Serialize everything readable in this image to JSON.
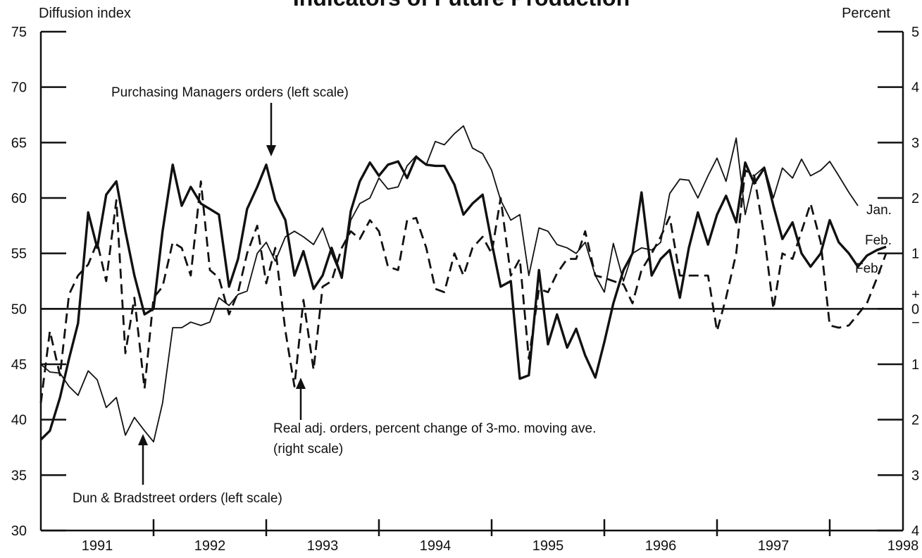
{
  "chart_data": {
    "type": "line",
    "title": "Indicators of Future Production",
    "ylabel": "Diffusion index",
    "y2label": "Percent",
    "x": [
      1991,
      1991.08,
      1991.17,
      1991.25,
      1991.33,
      1991.42,
      1991.5,
      1991.58,
      1991.67,
      1991.75,
      1991.83,
      1991.92,
      1992,
      1992.08,
      1992.17,
      1992.25,
      1992.33,
      1992.42,
      1992.5,
      1992.58,
      1992.67,
      1992.75,
      1992.83,
      1992.92,
      1993,
      1993.08,
      1993.17,
      1993.25,
      1993.33,
      1993.42,
      1993.5,
      1993.58,
      1993.67,
      1993.75,
      1993.83,
      1993.92,
      1994,
      1994.08,
      1994.17,
      1994.25,
      1994.33,
      1994.42,
      1994.5,
      1994.58,
      1994.67,
      1994.75,
      1994.83,
      1994.92,
      1995,
      1995.08,
      1995.17,
      1995.25,
      1995.33,
      1995.42,
      1995.5,
      1995.58,
      1995.67,
      1995.75,
      1995.83,
      1995.92,
      1996,
      1996.08,
      1996.17,
      1996.25,
      1996.33,
      1996.42,
      1996.5,
      1996.58,
      1996.67,
      1996.75,
      1996.83,
      1996.92,
      1997,
      1997.08,
      1997.17,
      1997.25,
      1997.33,
      1997.42,
      1997.5,
      1997.58,
      1997.67,
      1997.75,
      1997.83,
      1997.92,
      1998,
      1998.08,
      1998.17,
      1998.25,
      1998.33,
      1998.42,
      1998.5
    ],
    "series": [
      {
        "name": "Dun & Bradstreet orders (left scale)",
        "end_label": "Jan.",
        "color": "#111111",
        "style": "thin",
        "axis": "y",
        "values": [
          45,
          44.3,
          44.2,
          43,
          42.2,
          44.4,
          43.6,
          41.1,
          42,
          38.6,
          40.2,
          39,
          38,
          41.5,
          48.3,
          48.3,
          48.8,
          48.5,
          48.8,
          51,
          50.3,
          51.3,
          51.6,
          55,
          56,
          54.3,
          56.5,
          57,
          56.5,
          55.8,
          57.3,
          55,
          52.8,
          58,
          59.5,
          60,
          61.8,
          60.8,
          61,
          62.9,
          63.8,
          63,
          65.1,
          64.8,
          65.8,
          66.5,
          64.5,
          64,
          62.5,
          59.8,
          58,
          58.5,
          53,
          57.3,
          57,
          55.8,
          55.5,
          55,
          56,
          53,
          51.5,
          55.9,
          52.5,
          55,
          55.5,
          55.3,
          56,
          60.4,
          61.7,
          61.6,
          60,
          62,
          63.6,
          61.5,
          65.4,
          58.5,
          62,
          62.8,
          60,
          62.7,
          61.8,
          63.5,
          62,
          62.5,
          63.3,
          62,
          60.5,
          59.3,
          null,
          null,
          null
        ]
      },
      {
        "name": "Purchasing Managers orders (left scale)",
        "end_label": "Feb.",
        "color": "#111111",
        "style": "thick",
        "axis": "y",
        "values": [
          38.2,
          39,
          42,
          45.5,
          48.7,
          58.7,
          55.5,
          60.3,
          61.5,
          57,
          53,
          49.5,
          50,
          57,
          63,
          59.3,
          61,
          59.5,
          59,
          58.5,
          52,
          54.5,
          59,
          61,
          63,
          59.8,
          58,
          53,
          55.2,
          51.8,
          53,
          55.5,
          52.8,
          58.8,
          61.5,
          63.2,
          62,
          63,
          63.3,
          61.8,
          63.7,
          63,
          62.9,
          62.9,
          61.2,
          58.5,
          59.5,
          60.3,
          56,
          52,
          52.5,
          43.7,
          44,
          53.5,
          46.8,
          49.5,
          46.5,
          48.2,
          45.8,
          43.8,
          47,
          50.5,
          53.5,
          55,
          60.5,
          53,
          54.5,
          55.3,
          51,
          55.5,
          58.7,
          55.8,
          58.5,
          60.2,
          57.8,
          63.2,
          61.3,
          62.7,
          59.3,
          56.3,
          57.8,
          55,
          53.8,
          55,
          58,
          56,
          55,
          53.8,
          54.8,
          55.3,
          55.6
        ]
      },
      {
        "name": "Real adj. orders, percent change of 3-mo. moving ave.",
        "name_note": "(right scale)",
        "end_label": "Feb.",
        "color": "#111111",
        "style": "dashed",
        "axis": "y2",
        "values": [
          -1.7,
          -0.4,
          -1.2,
          0.26,
          0.6,
          0.8,
          1.2,
          0.5,
          1.96,
          -0.8,
          0.2,
          -1.44,
          0.2,
          0.4,
          1.2,
          1.1,
          0.6,
          2.3,
          0.7,
          0.56,
          -0.1,
          0.3,
          1.0,
          1.5,
          0.46,
          1.1,
          -0.4,
          -1.4,
          0.16,
          -1.1,
          0.4,
          0.5,
          1.1,
          1.4,
          1.26,
          1.6,
          1.4,
          0.76,
          0.7,
          1.6,
          1.64,
          1.1,
          0.36,
          0.3,
          1.0,
          0.6,
          1.1,
          1.3,
          1.0,
          2.0,
          0.6,
          0.9,
          -0.9,
          0.36,
          0.3,
          0.64,
          0.9,
          0.9,
          1.4,
          0.6,
          0.56,
          0.5,
          0.44,
          0.1,
          0.7,
          1.0,
          1.3,
          1.66,
          0.6,
          0.6,
          0.6,
          0.6,
          -0.4,
          0.2,
          1.0,
          2.5,
          2.4,
          1.3,
          0.0,
          1.0,
          0.9,
          1.4,
          1.9,
          1.2,
          -0.3,
          -0.34,
          -0.3,
          -0.1,
          0.1,
          0.56,
          1.0
        ]
      }
    ],
    "xlim": [
      1991,
      1998.65
    ],
    "xticks": [
      {
        "value": 1991.5,
        "label": "1991"
      },
      {
        "value": 1992.5,
        "label": "1992"
      },
      {
        "value": 1993.5,
        "label": "1993"
      },
      {
        "value": 1994.5,
        "label": "1994"
      },
      {
        "value": 1995.5,
        "label": "1995"
      },
      {
        "value": 1996.5,
        "label": "1996"
      },
      {
        "value": 1997.5,
        "label": "1997"
      },
      {
        "value": 1998.65,
        "label": "1998"
      }
    ],
    "x_minor_ticks": [
      1992,
      1993,
      1994,
      1995,
      1996,
      1997,
      1998
    ],
    "ylim": [
      30,
      75
    ],
    "yticks": [
      30,
      35,
      40,
      45,
      50,
      55,
      60,
      65,
      70,
      75
    ],
    "y2lim": [
      -4,
      5
    ],
    "y2ticks": [
      {
        "value": -4,
        "label": "4"
      },
      {
        "value": -3,
        "label": "3"
      },
      {
        "value": -2,
        "label": "2"
      },
      {
        "value": -1,
        "label": "1"
      },
      0,
      1,
      2,
      3,
      4,
      5
    ],
    "y2_signs": [
      "+",
      "−"
    ],
    "reference_line": 50
  }
}
